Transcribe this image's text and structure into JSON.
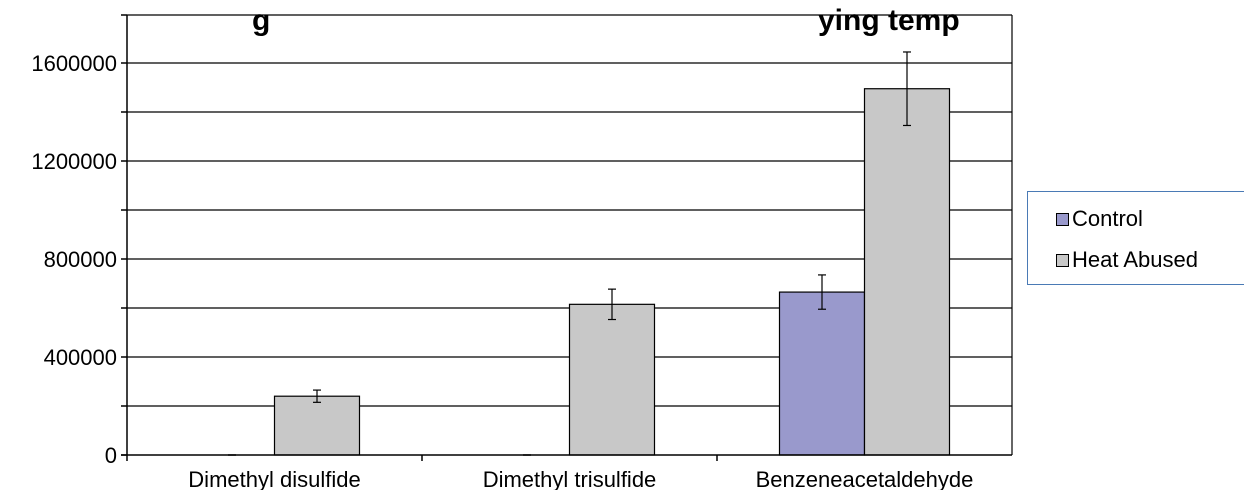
{
  "chart_data": {
    "type": "bar",
    "title": "",
    "title_visible_fragment": "g",
    "title_visible_fragment_2": "ying temp",
    "categories": [
      "Dimethyl disulfide",
      "Dimethyl trisulfide",
      "Benzeneacetaldehyde"
    ],
    "series": [
      {
        "name": "Control",
        "color": "#9999cc",
        "values": [
          0,
          0,
          665000
        ],
        "errors": [
          0,
          0,
          70000
        ]
      },
      {
        "name": "Heat Abused",
        "color": "#c8c8c8",
        "values": [
          240000,
          615000,
          1495000
        ],
        "errors": [
          25000,
          62000,
          150000
        ]
      }
    ],
    "yticks": [
      "0",
      "400000",
      "800000",
      "1200000",
      "1600000"
    ],
    "ylim": [
      0,
      1600000
    ],
    "gridlines": true,
    "legend_position": "right"
  }
}
